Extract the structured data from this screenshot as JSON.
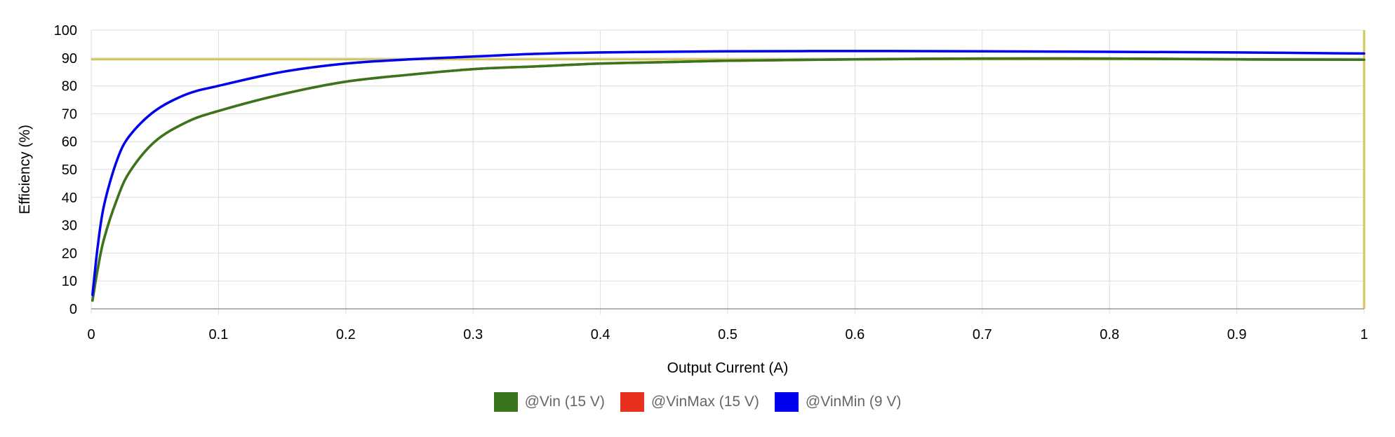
{
  "chart_data": {
    "type": "line",
    "title": "",
    "xlabel": "Output Current (A)",
    "ylabel": "Efficiency (%)",
    "xlim": [
      0,
      1
    ],
    "ylim": [
      0,
      100
    ],
    "x_ticks": [
      "0",
      "0.1",
      "0.2",
      "0.3",
      "0.4",
      "0.5",
      "0.6",
      "0.7",
      "0.8",
      "0.9",
      "1"
    ],
    "y_ticks": [
      "0",
      "10",
      "20",
      "30",
      "40",
      "50",
      "60",
      "70",
      "80",
      "90",
      "100"
    ],
    "grid": true,
    "legend_position": "bottom",
    "x": [
      0.001,
      0.005,
      0.01,
      0.02,
      0.03,
      0.05,
      0.075,
      0.1,
      0.15,
      0.2,
      0.25,
      0.3,
      0.35,
      0.4,
      0.45,
      0.5,
      0.6,
      0.7,
      0.8,
      0.9,
      1.0
    ],
    "series": [
      {
        "name": "@Vin (15 V)",
        "color": "#38761d",
        "values": [
          3,
          14,
          25,
          39,
          49,
          60,
          67,
          71,
          77,
          81.5,
          84,
          86,
          87,
          88,
          88.5,
          89,
          89.5,
          89.8,
          89.8,
          89.5,
          89.4
        ]
      },
      {
        "name": "@VinMax (15 V)",
        "color": "#e8301f",
        "values": [
          3,
          14,
          25,
          39,
          49,
          60,
          67,
          71,
          77,
          81.5,
          84,
          86,
          87,
          88,
          88.5,
          89,
          89.5,
          89.8,
          89.8,
          89.5,
          89.4
        ]
      },
      {
        "name": "@VinMin (9 V)",
        "color": "#0000ee",
        "values": [
          5,
          22,
          37,
          53,
          62,
          71,
          77,
          80,
          85,
          88,
          89.5,
          90.5,
          91.5,
          92,
          92.2,
          92.4,
          92.5,
          92.4,
          92.2,
          92,
          91.6
        ]
      }
    ],
    "target_line": {
      "y": 89.5,
      "x_end": 1.0,
      "color": "#d4c55a"
    },
    "colors": {
      "grid": "#dddddd",
      "axis": "#333333",
      "text": "#000000",
      "legend_text": "#666666"
    }
  }
}
